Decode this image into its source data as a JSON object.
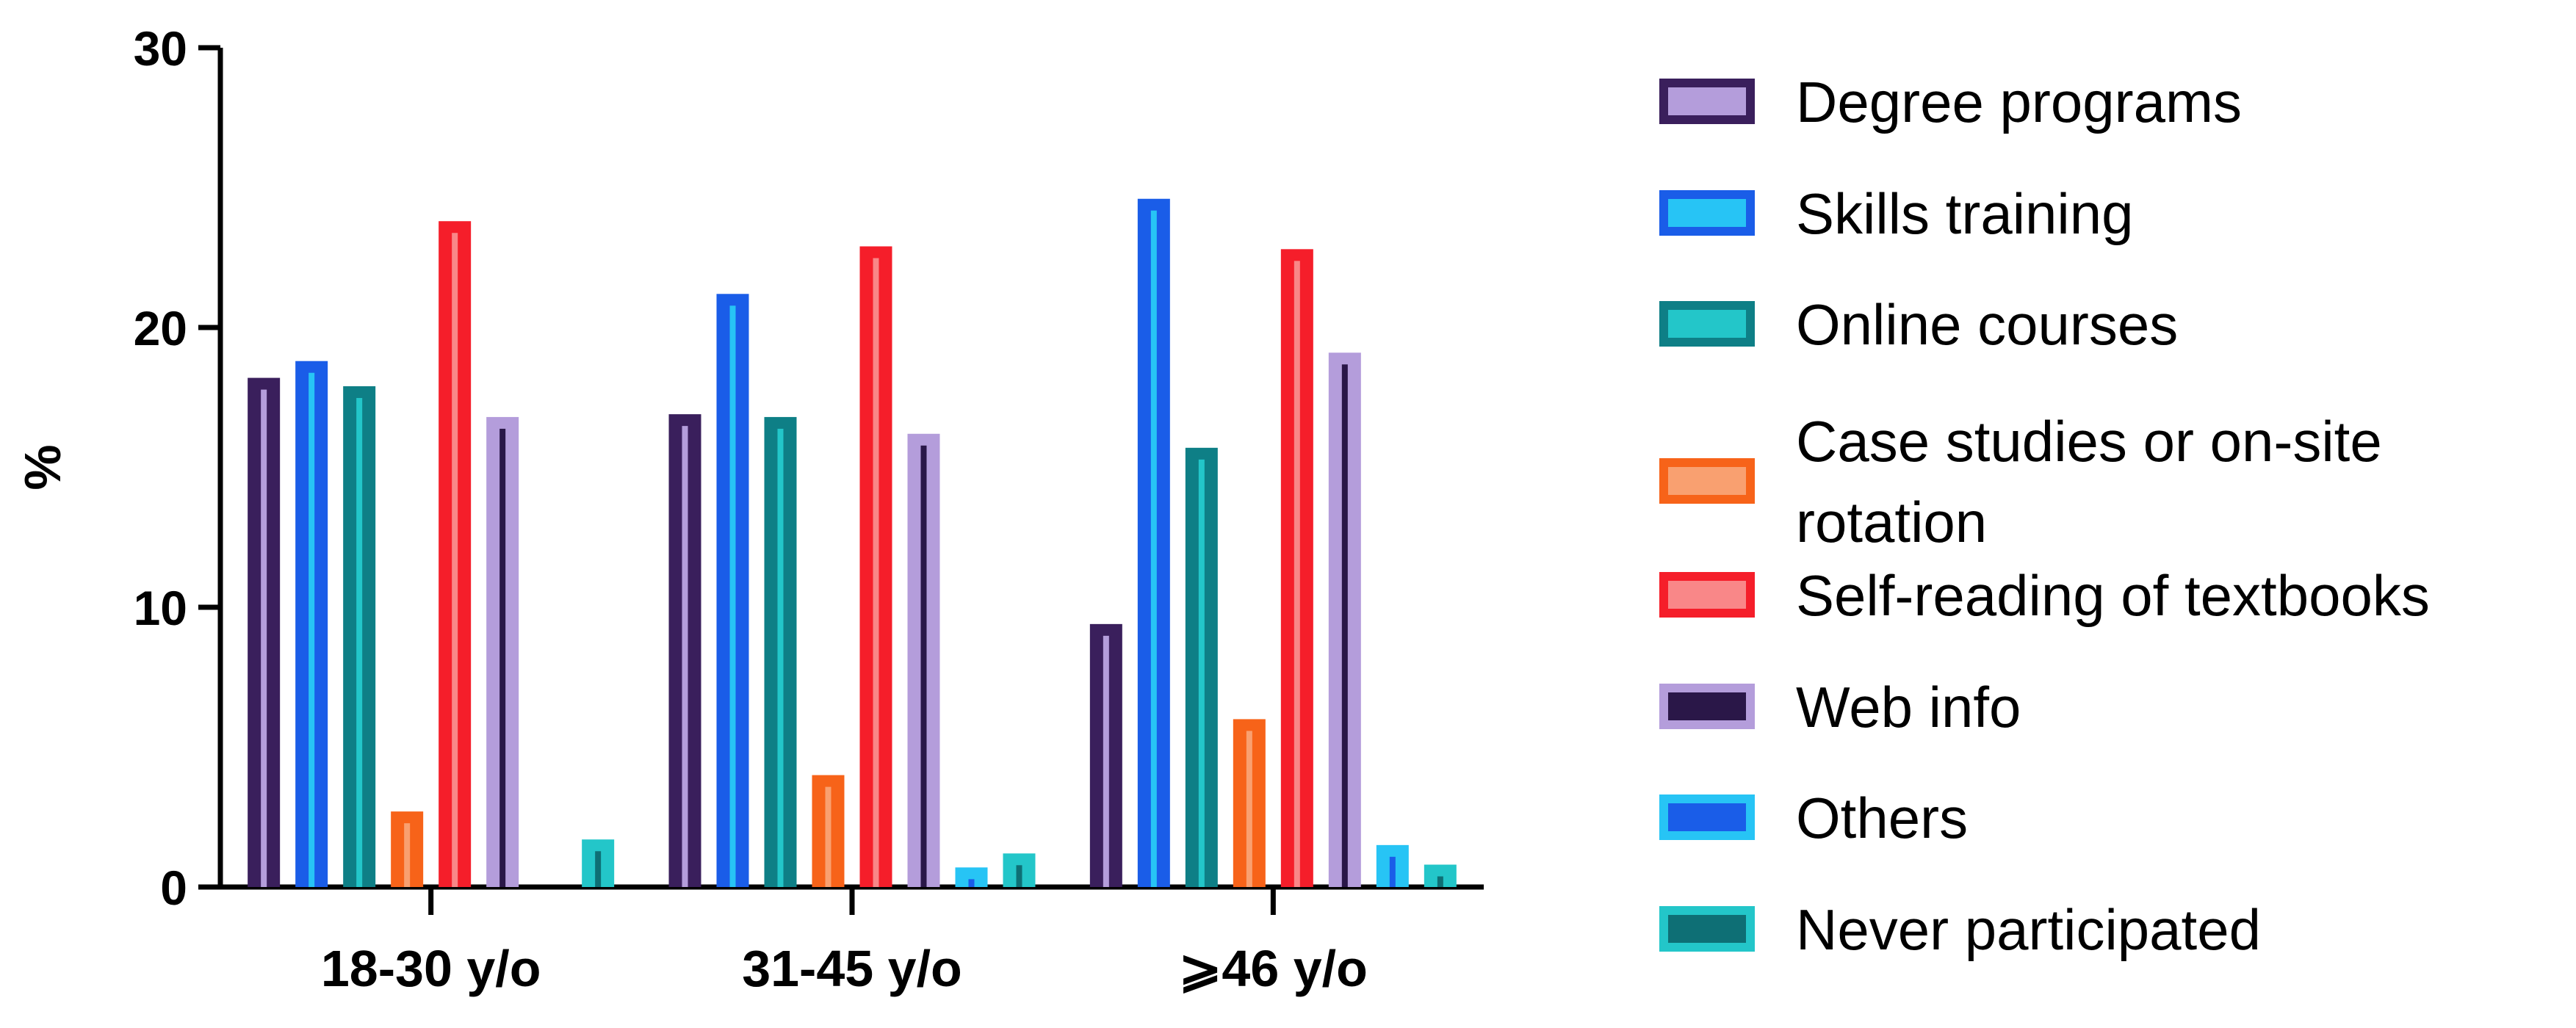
{
  "chart_data": {
    "type": "bar",
    "ylabel": "%",
    "xlabel": "",
    "ylim": [
      0,
      30
    ],
    "yticks": [
      0,
      10,
      20,
      30
    ],
    "categories": [
      "18-30 y/o",
      "31-45 y/o",
      "⩾46 y/o"
    ],
    "legend_position": "right",
    "series": [
      {
        "name": "Degree programs",
        "values": [
          18.2,
          16.9,
          9.4
        ],
        "fill": "#3a1f5c",
        "edge": "#b49ddb"
      },
      {
        "name": "Skills training",
        "values": [
          18.8,
          21.2,
          24.6
        ],
        "fill": "#1a5de8",
        "edge": "#27c4f5"
      },
      {
        "name": "Online courses",
        "values": [
          17.9,
          16.8,
          15.7
        ],
        "fill": "#0e7f86",
        "edge": "#23c6c9"
      },
      {
        "name": "Case studies or on-site rotation",
        "values": [
          2.7,
          4.0,
          6.0
        ],
        "fill": "#f76319",
        "edge": "#f9a070"
      },
      {
        "name": "Self-reading of textbooks",
        "values": [
          23.8,
          22.9,
          22.8
        ],
        "fill": "#f51e2a",
        "edge": "#f98788"
      },
      {
        "name": "Web info",
        "values": [
          16.8,
          16.2,
          19.1
        ],
        "fill": "#b49ddb",
        "edge": "#2a1748"
      },
      {
        "name": "Others",
        "values": [
          0,
          0.7,
          1.5
        ],
        "fill": "#27c4f5",
        "edge": "#1a5de8"
      },
      {
        "name": "Never participated",
        "values": [
          1.7,
          1.2,
          0.8
        ],
        "fill": "#23c6c9",
        "edge": "#0e6f75"
      }
    ]
  }
}
